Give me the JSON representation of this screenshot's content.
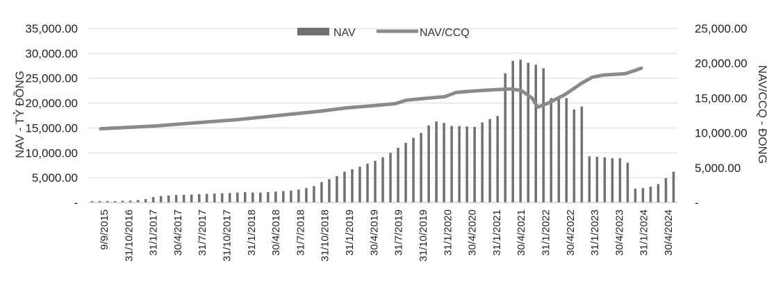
{
  "chart_data": {
    "type": "bar+line",
    "title": "",
    "ylabel_left": "NAV - TỶ ĐỒNG",
    "ylabel_right": "NAV/CCQ - ĐỒNG",
    "ylim_left": [
      0,
      35000
    ],
    "ylim_right": [
      0,
      25000
    ],
    "yticks_left": [
      "-",
      "5,000.00",
      "10,000.00",
      "15,000.00",
      "20,000.00",
      "25,000.00",
      "30,000.00",
      "35,000.00"
    ],
    "yticks_right": [
      "-",
      "5,000.00",
      "10,000.00",
      "15,000.00",
      "20,000.00",
      "25,000.00"
    ],
    "grid": true,
    "legend": {
      "position": "top-center",
      "bar_label": "NAV",
      "line_label": "NAV/CCQ"
    },
    "colors": {
      "bar": "#707070",
      "line": "#8a8a8a",
      "grid": "#d9d9d9"
    },
    "x_tick_labels": [
      "9/9/2015",
      "31/10/2016",
      "31/1/2017",
      "30/4/2017",
      "31/7/2017",
      "31/10/2017",
      "31/1/2018",
      "30/4/2018",
      "31/7/2018",
      "31/10/2018",
      "31/1/2019",
      "30/4/2019",
      "31/7/2019",
      "31/10/2019",
      "31/1/2020",
      "30/4/2020",
      "31/1/2021",
      "30/4/2021",
      "31/1/2022",
      "30/4/2022",
      "31/1/2023",
      "30/4/2023",
      "31/1/2024",
      "30/4/2024"
    ],
    "series": [
      {
        "name": "NAV",
        "type": "bar",
        "axis": "left",
        "values": [
          300,
          300,
          300,
          300,
          350,
          400,
          500,
          700,
          1100,
          1300,
          1400,
          1500,
          1550,
          1600,
          1700,
          1750,
          1800,
          1850,
          1900,
          2000,
          2100,
          2000,
          2000,
          2100,
          2200,
          2300,
          2400,
          2600,
          2900,
          3300,
          4100,
          4700,
          5300,
          6200,
          6700,
          7200,
          7800,
          8400,
          9100,
          10000,
          11000,
          12000,
          13000,
          14000,
          15500,
          16300,
          16000,
          15400,
          15400,
          15300,
          15200,
          16100,
          16800,
          17400,
          26000,
          28500,
          28700,
          28100,
          27700,
          27000,
          21000,
          20800,
          21000,
          18700,
          19300,
          9300,
          9200,
          9100,
          8900,
          8900,
          8000,
          2800,
          2900,
          3200,
          3700,
          4900,
          6200
        ]
      },
      {
        "name": "NAV/CCQ",
        "type": "line",
        "axis": "right",
        "points": [
          [
            0,
            10600
          ],
          [
            5,
            10800
          ],
          [
            10,
            11000
          ],
          [
            15,
            11300
          ],
          [
            20,
            11600
          ],
          [
            25,
            11900
          ],
          [
            30,
            12300
          ],
          [
            35,
            12700
          ],
          [
            40,
            13100
          ],
          [
            45,
            13600
          ],
          [
            50,
            13900
          ],
          [
            54,
            14200
          ],
          [
            56,
            14700
          ],
          [
            60,
            15000
          ],
          [
            63,
            15200
          ],
          [
            65,
            15800
          ],
          [
            68,
            16000
          ],
          [
            72,
            16200
          ],
          [
            75,
            16300
          ],
          [
            77,
            16100
          ],
          [
            79,
            15000
          ],
          [
            80,
            13700
          ],
          [
            82,
            14300
          ],
          [
            85,
            15500
          ],
          [
            88,
            17100
          ],
          [
            90,
            18000
          ],
          [
            92,
            18300
          ],
          [
            96,
            18500
          ],
          [
            98,
            19000
          ],
          [
            99,
            19300
          ]
        ]
      }
    ]
  }
}
